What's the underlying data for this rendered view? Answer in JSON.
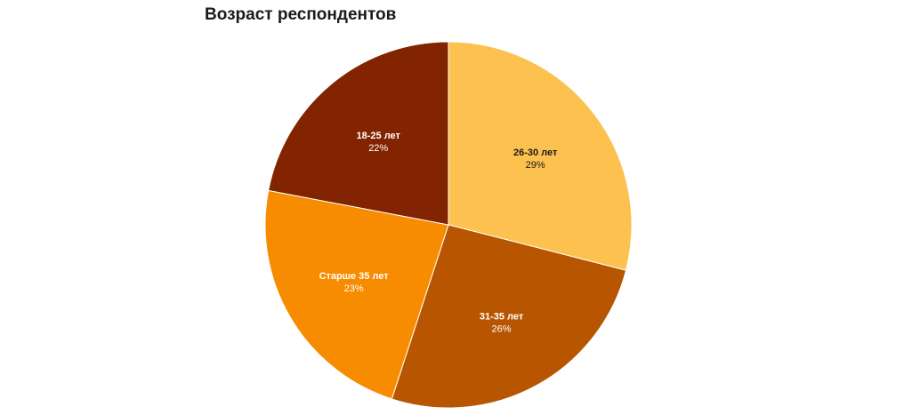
{
  "chart_data": {
    "type": "pie",
    "title": "Возраст респондентов",
    "categories": [
      "26-30 лет",
      "31-35 лет",
      "Старше 35 лет",
      "18-25 лет"
    ],
    "values": [
      29,
      26,
      23,
      22
    ],
    "value_labels": [
      "29%",
      "26%",
      "23%",
      "22%"
    ],
    "unit": "%",
    "colors": [
      "#fdc150",
      "#b85500",
      "#f78c00",
      "#822400"
    ],
    "label_colors": [
      "#1a1a1a",
      "#ffffff",
      "#ffffff",
      "#ffffff"
    ],
    "start": "12 o'clock",
    "direction": "clockwise",
    "legend": "none"
  }
}
